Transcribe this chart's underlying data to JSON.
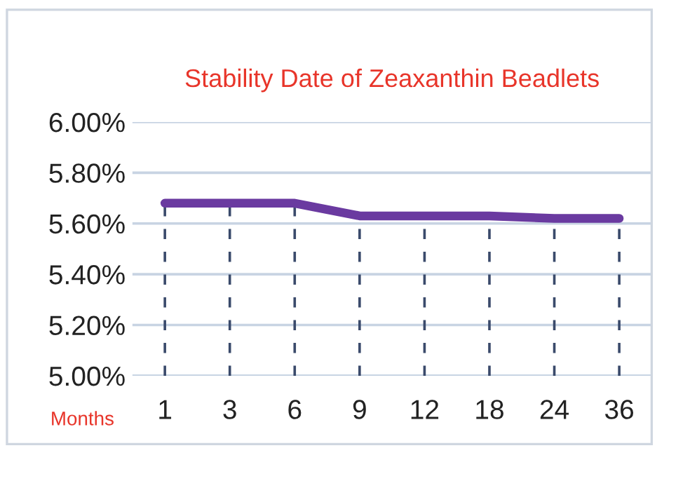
{
  "chart_data": {
    "type": "line",
    "title": "Stability Date of Zeaxanthin Beadlets",
    "xlabel": "Months",
    "categories": [
      "1",
      "3",
      "6",
      "9",
      "12",
      "18",
      "24",
      "36"
    ],
    "series": [
      {
        "color": "#6a3aa0",
        "values": [
          5.68,
          5.68,
          5.68,
          5.63,
          5.63,
          5.63,
          5.62,
          5.62
        ],
        "errors": [
          [
            5.0,
            5.68
          ],
          [
            5.0,
            5.68
          ],
          [
            5.0,
            5.68
          ],
          [
            5.0,
            5.63
          ],
          [
            5.0,
            5.63
          ],
          [
            5.0,
            5.63
          ],
          [
            5.0,
            5.62
          ],
          [
            5.0,
            5.62
          ]
        ]
      }
    ],
    "ylim": [
      5.0,
      6.0
    ],
    "yticks": [
      {
        "value": 5.0,
        "label": "5.00%"
      },
      {
        "value": 5.2,
        "label": "5.20%"
      },
      {
        "value": 5.4,
        "label": "5.40%"
      },
      {
        "value": 5.6,
        "label": "5.60%"
      },
      {
        "value": 5.8,
        "label": "5.80%"
      },
      {
        "value": 6.0,
        "label": "6.00%"
      }
    ],
    "grid": "y",
    "marker": "none",
    "line_style": "solid"
  }
}
